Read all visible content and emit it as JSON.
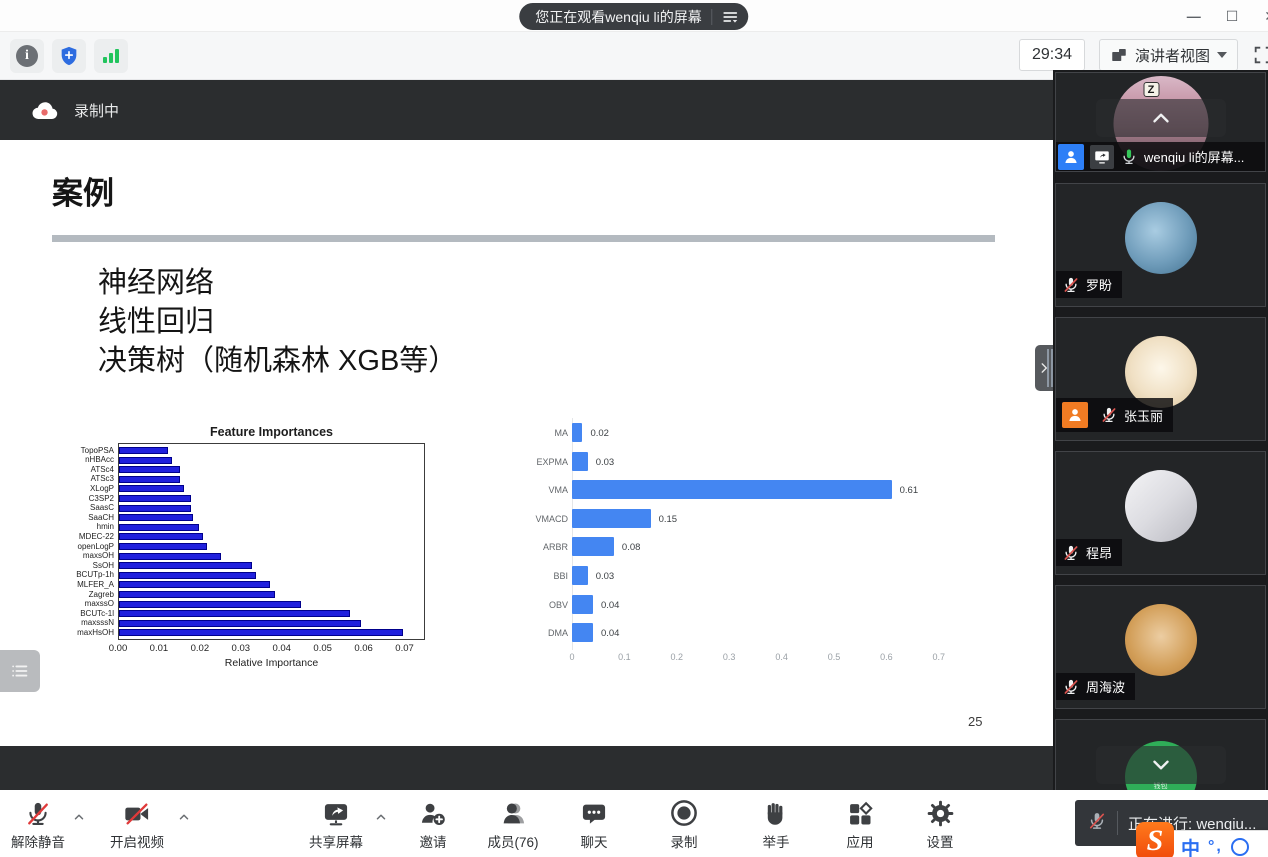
{
  "header": {
    "pill_title": "您正在观看wenqiu li的屏幕",
    "timer": "29:34",
    "view_mode_label": "演讲者视图"
  },
  "recording_label": "录制中",
  "slide": {
    "title": "案例",
    "lines": [
      "神经网络",
      "线性回归",
      "决策树（随机森林 XGB等）"
    ],
    "page_number": "25"
  },
  "chart_data": [
    {
      "type": "bar",
      "orientation": "horizontal",
      "title": "Feature Importances",
      "xlabel": "Relative Importance",
      "categories": [
        "TopoPSA",
        "nHBAcc",
        "ATSc4",
        "ATSc3",
        "XLogP",
        "C3SP2",
        "SaasC",
        "SaaCH",
        "hmin",
        "MDEC-22",
        "openLogP",
        "maxsOH",
        "SsOH",
        "BCUTp-1h",
        "MLFER_A",
        "Zagreb",
        "maxssO",
        "BCUTc-1l",
        "maxsssN",
        "maxHsOH"
      ],
      "values": [
        0.012,
        0.013,
        0.015,
        0.015,
        0.016,
        0.0175,
        0.0175,
        0.018,
        0.0195,
        0.0205,
        0.0215,
        0.025,
        0.0325,
        0.0335,
        0.037,
        0.038,
        0.0445,
        0.0565,
        0.059,
        0.0695
      ],
      "xlim": [
        0,
        0.075
      ],
      "xticks": [
        "0.00",
        "0.01",
        "0.02",
        "0.03",
        "0.04",
        "0.05",
        "0.06",
        "0.07"
      ],
      "bar_color": "#2020dd",
      "grid": false,
      "legend": false
    },
    {
      "type": "bar",
      "orientation": "horizontal",
      "title": "",
      "categories": [
        "MA",
        "EXPMA",
        "VMA",
        "VMACD",
        "ARBR",
        "BBI",
        "OBV",
        "DMA"
      ],
      "values": [
        0.02,
        0.03,
        0.61,
        0.15,
        0.08,
        0.03,
        0.04,
        0.04
      ],
      "data_labels": [
        "0.02",
        "0.03",
        "0.61",
        "0.15",
        "0.08",
        "0.03",
        "0.04",
        "0.04"
      ],
      "xlim": [
        0,
        0.75
      ],
      "xticks": [
        "0",
        "0.1",
        "0.2",
        "0.3",
        "0.4",
        "0.5",
        "0.6",
        "0.7"
      ],
      "bar_color": "#4486f2",
      "grid": false,
      "legend": false
    }
  ],
  "sidebar": {
    "participants": [
      {
        "name": "wenqiu li的屏幕...",
        "avatar_text": "Z",
        "mic": "active",
        "badges": [
          "participant",
          "screen-share"
        ],
        "overlay": "chevron-up"
      },
      {
        "name": "罗盼",
        "mic": "muted"
      },
      {
        "name": "张玉丽",
        "mic": "muted",
        "badges": [
          "host"
        ]
      },
      {
        "name": "程昂",
        "mic": "muted"
      },
      {
        "name": "周海波",
        "mic": "muted"
      },
      {
        "name": "",
        "avatar_lines": [
          "钱包",
          "¥0.00"
        ],
        "overlay": "chevron-down"
      }
    ]
  },
  "toolbar": {
    "items": [
      {
        "id": "unmute",
        "icon": "micMuted",
        "label": "解除静音",
        "chevron": true
      },
      {
        "id": "start-video",
        "icon": "cameraMuted",
        "label": "开启视频",
        "chevron": true
      },
      {
        "id": "share-screen",
        "icon": "shareScreen",
        "label": "共享屏幕",
        "chevron": true
      },
      {
        "id": "invite",
        "icon": "invite",
        "label": "邀请"
      },
      {
        "id": "members",
        "icon": "members",
        "label": "成员(76)"
      },
      {
        "id": "chat",
        "icon": "chat",
        "label": "聊天"
      },
      {
        "id": "record",
        "icon": "record",
        "label": "录制"
      },
      {
        "id": "raise-hand",
        "icon": "raiseHand",
        "label": "举手"
      },
      {
        "id": "apps",
        "icon": "apps",
        "label": "应用"
      },
      {
        "id": "settings",
        "icon": "settings",
        "label": "设置"
      }
    ]
  },
  "status_bar": {
    "active_speaker": "正在进行: wenqiu...",
    "ime": {
      "logo": "S",
      "mode": "中",
      "symbols": "°,"
    }
  }
}
